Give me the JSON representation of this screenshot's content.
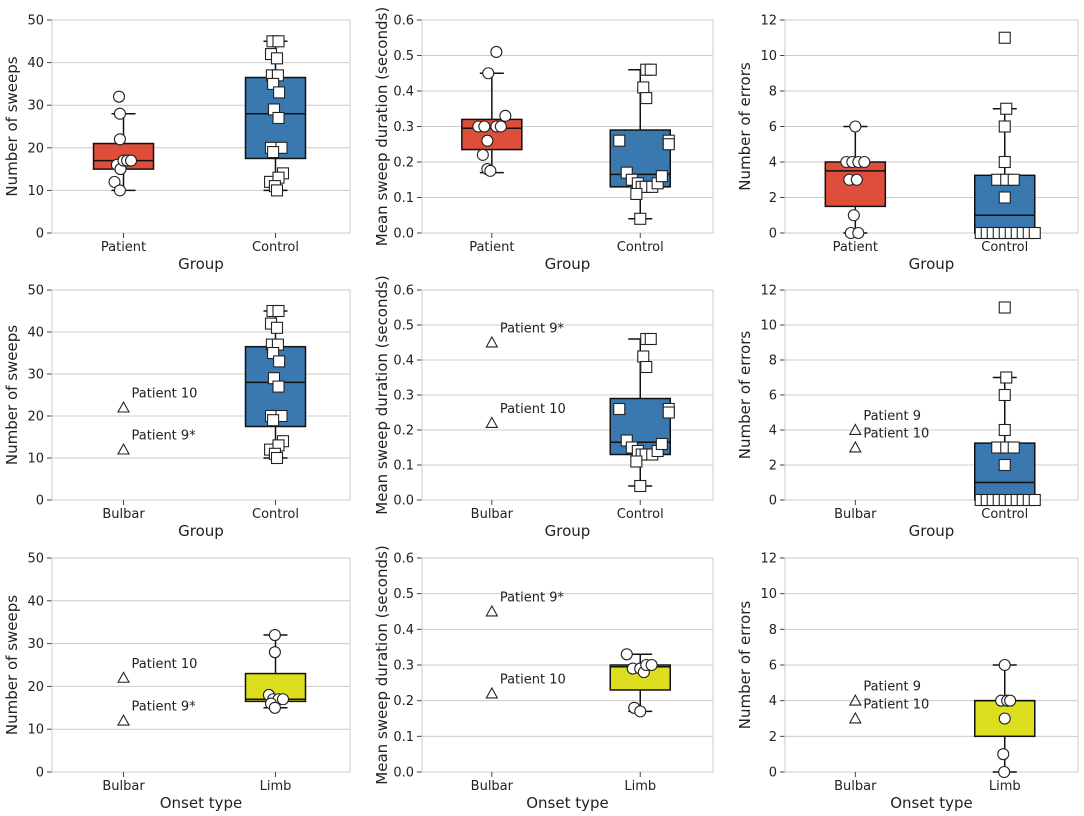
{
  "colors": {
    "patient": "#dd4f3a",
    "control": "#3a79b0",
    "limb": "#dede20",
    "grid": "#cccccc",
    "frame": "#cccccc",
    "marker_edge": "#222222",
    "marker_fill": "#ffffff"
  },
  "chart_data": [
    {
      "type": "box",
      "ylabel": "Number of sweeps",
      "xlabel": "Group",
      "ylim": [
        0,
        50
      ],
      "yticks": [
        "0",
        "10",
        "20",
        "30",
        "40",
        "50"
      ],
      "categories": [
        "Patient",
        "Control"
      ],
      "boxes": [
        {
          "category": "Patient",
          "color_key": "patient",
          "whisker_low": 10,
          "q1": 15,
          "median": 17,
          "q3": 21,
          "whisker_high": 28,
          "marker": "circle",
          "points": [
            [
              -0.15,
              32
            ],
            [
              -0.12,
              28
            ],
            [
              -0.12,
              22
            ],
            [
              -0.3,
              12
            ],
            [
              -0.12,
              10
            ],
            [
              -0.22,
              16
            ],
            [
              -0.1,
              15
            ],
            [
              0.0,
              17
            ],
            [
              0.12,
              17
            ],
            [
              0.25,
              17
            ]
          ]
        },
        {
          "category": "Control",
          "color_key": "control",
          "whisker_low": 10,
          "q1": 17.5,
          "median": 28,
          "q3": 36.5,
          "whisker_high": 45,
          "marker": "square",
          "points": [
            [
              -0.1,
              45
            ],
            [
              0.1,
              45
            ],
            [
              -0.15,
              42
            ],
            [
              0.05,
              41
            ],
            [
              -0.12,
              37
            ],
            [
              0.08,
              37
            ],
            [
              -0.08,
              35
            ],
            [
              0.12,
              33
            ],
            [
              -0.05,
              29
            ],
            [
              0.1,
              27
            ],
            [
              -0.15,
              20
            ],
            [
              0.2,
              20
            ],
            [
              -0.08,
              19
            ],
            [
              -0.18,
              12
            ],
            [
              0.25,
              14
            ],
            [
              0.1,
              13
            ],
            [
              -0.02,
              11
            ],
            [
              0.05,
              10
            ]
          ]
        }
      ],
      "annotations": []
    },
    {
      "type": "box",
      "ylabel": "Mean sweep duration (seconds)",
      "xlabel": "Group",
      "ylim": [
        0,
        0.6
      ],
      "yticks": [
        "0.0",
        "0.1",
        "0.2",
        "0.3",
        "0.4",
        "0.5",
        "0.6"
      ],
      "categories": [
        "Patient",
        "Control"
      ],
      "boxes": [
        {
          "category": "Patient",
          "color_key": "patient",
          "whisker_low": 0.17,
          "q1": 0.235,
          "median": 0.295,
          "q3": 0.32,
          "whisker_high": 0.45,
          "marker": "circle",
          "points": [
            [
              0.15,
              0.51
            ],
            [
              -0.12,
              0.45
            ],
            [
              -0.45,
              0.3
            ],
            [
              -0.25,
              0.3
            ],
            [
              -0.15,
              0.26
            ],
            [
              -0.3,
              0.22
            ],
            [
              -0.15,
              0.18
            ],
            [
              -0.05,
              0.175
            ],
            [
              0.15,
              0.3
            ],
            [
              0.3,
              0.3
            ],
            [
              0.45,
              0.33
            ]
          ]
        },
        {
          "category": "Control",
          "color_key": "control",
          "whisker_low": 0.04,
          "q1": 0.13,
          "median": 0.165,
          "q3": 0.29,
          "whisker_high": 0.46,
          "marker": "square",
          "points": [
            [
              0.2,
              0.46
            ],
            [
              0.35,
              0.46
            ],
            [
              0.1,
              0.41
            ],
            [
              0.2,
              0.38
            ],
            [
              -0.7,
              0.26
            ],
            [
              -0.45,
              0.17
            ],
            [
              -0.28,
              0.15
            ],
            [
              -0.08,
              0.14
            ],
            [
              0.05,
              0.13
            ],
            [
              0.18,
              0.13
            ],
            [
              0.4,
              0.13
            ],
            [
              0.58,
              0.14
            ],
            [
              0.72,
              0.16
            ],
            [
              0.95,
              0.26
            ],
            [
              0.95,
              0.25
            ],
            [
              -0.13,
              0.11
            ],
            [
              0.0,
              0.04
            ]
          ]
        }
      ],
      "annotations": []
    },
    {
      "type": "box",
      "ylabel": "Number of errors",
      "xlabel": "Group",
      "ylim": [
        0,
        12
      ],
      "yticks": [
        "0",
        "2",
        "4",
        "6",
        "8",
        "10",
        "12"
      ],
      "categories": [
        "Patient",
        "Control"
      ],
      "boxes": [
        {
          "category": "Patient",
          "color_key": "patient",
          "whisker_low": 0,
          "q1": 1.5,
          "median": 3.5,
          "q3": 4,
          "whisker_high": 6,
          "marker": "circle",
          "points": [
            [
              0.0,
              6
            ],
            [
              -0.3,
              4
            ],
            [
              -0.1,
              4
            ],
            [
              0.1,
              4
            ],
            [
              0.3,
              4
            ],
            [
              -0.2,
              3
            ],
            [
              0.05,
              3
            ],
            [
              -0.05,
              1
            ],
            [
              -0.15,
              0
            ],
            [
              0.1,
              0
            ]
          ]
        },
        {
          "category": "Control",
          "color_key": "control",
          "whisker_low": 0,
          "q1": 0,
          "median": 1,
          "q3": 3.25,
          "whisker_high": 7,
          "marker": "square",
          "points": [
            [
              0.0,
              11
            ],
            [
              0.05,
              7
            ],
            [
              0.0,
              6
            ],
            [
              0.0,
              4
            ],
            [
              -0.25,
              3
            ],
            [
              0.05,
              3
            ],
            [
              0.3,
              3
            ],
            [
              0.0,
              2
            ],
            [
              -0.8,
              0
            ],
            [
              -0.6,
              0
            ],
            [
              -0.4,
              0
            ],
            [
              -0.2,
              0
            ],
            [
              0.0,
              0
            ],
            [
              0.2,
              0
            ],
            [
              0.4,
              0
            ],
            [
              0.6,
              0
            ],
            [
              0.8,
              0
            ],
            [
              1.0,
              0
            ]
          ]
        }
      ],
      "annotations": []
    },
    {
      "type": "box",
      "ylabel": "Number of sweeps",
      "xlabel": "Group",
      "ylim": [
        0,
        50
      ],
      "yticks": [
        "0",
        "10",
        "20",
        "30",
        "40",
        "50"
      ],
      "categories": [
        "Bulbar",
        "Control"
      ],
      "boxes": [
        {
          "category": "Control",
          "color_key": "control",
          "whisker_low": 10,
          "q1": 17.5,
          "median": 28,
          "q3": 36.5,
          "whisker_high": 45,
          "marker": "square",
          "points": [
            [
              -0.1,
              45
            ],
            [
              0.1,
              45
            ],
            [
              -0.15,
              42
            ],
            [
              0.05,
              41
            ],
            [
              -0.12,
              37
            ],
            [
              0.08,
              37
            ],
            [
              -0.08,
              35
            ],
            [
              0.12,
              33
            ],
            [
              -0.05,
              29
            ],
            [
              0.1,
              27
            ],
            [
              -0.15,
              20
            ],
            [
              0.2,
              20
            ],
            [
              -0.08,
              19
            ],
            [
              -0.18,
              12
            ],
            [
              0.25,
              14
            ],
            [
              0.1,
              13
            ],
            [
              -0.02,
              11
            ],
            [
              0.05,
              10
            ]
          ]
        }
      ],
      "triangles": [
        {
          "category": "Bulbar",
          "y": 22
        },
        {
          "category": "Bulbar",
          "y": 12
        }
      ],
      "annotations": [
        {
          "text": "Patient 10",
          "category": "Bulbar",
          "y": 22
        },
        {
          "text": "Patient 9*",
          "category": "Bulbar",
          "y": 12
        }
      ]
    },
    {
      "type": "box",
      "ylabel": "Mean sweep duration (seconds)",
      "xlabel": "Group",
      "ylim": [
        0,
        0.6
      ],
      "yticks": [
        "0.0",
        "0.1",
        "0.2",
        "0.3",
        "0.4",
        "0.5",
        "0.6"
      ],
      "categories": [
        "Bulbar",
        "Control"
      ],
      "boxes": [
        {
          "category": "Control",
          "color_key": "control",
          "whisker_low": 0.04,
          "q1": 0.13,
          "median": 0.165,
          "q3": 0.29,
          "whisker_high": 0.46,
          "marker": "square",
          "points": [
            [
              0.2,
              0.46
            ],
            [
              0.35,
              0.46
            ],
            [
              0.1,
              0.41
            ],
            [
              0.2,
              0.38
            ],
            [
              -0.7,
              0.26
            ],
            [
              -0.45,
              0.17
            ],
            [
              -0.28,
              0.15
            ],
            [
              -0.08,
              0.14
            ],
            [
              0.05,
              0.13
            ],
            [
              0.18,
              0.13
            ],
            [
              0.4,
              0.13
            ],
            [
              0.58,
              0.14
            ],
            [
              0.72,
              0.16
            ],
            [
              0.95,
              0.26
            ],
            [
              0.95,
              0.25
            ],
            [
              -0.13,
              0.11
            ],
            [
              0.0,
              0.04
            ]
          ]
        }
      ],
      "triangles": [
        {
          "category": "Bulbar",
          "y": 0.45
        },
        {
          "category": "Bulbar",
          "y": 0.22
        }
      ],
      "annotations": [
        {
          "text": "Patient 9*",
          "category": "Bulbar",
          "y": 0.45
        },
        {
          "text": "Patient 10",
          "category": "Bulbar",
          "y": 0.22
        }
      ]
    },
    {
      "type": "box",
      "ylabel": "Number of errors",
      "xlabel": "Group",
      "ylim": [
        0,
        12
      ],
      "yticks": [
        "0",
        "2",
        "4",
        "6",
        "8",
        "10",
        "12"
      ],
      "categories": [
        "Bulbar",
        "Control"
      ],
      "boxes": [
        {
          "category": "Control",
          "color_key": "control",
          "whisker_low": 0,
          "q1": 0,
          "median": 1,
          "q3": 3.25,
          "whisker_high": 7,
          "marker": "square",
          "points": [
            [
              0.0,
              11
            ],
            [
              0.05,
              7
            ],
            [
              0.0,
              6
            ],
            [
              0.0,
              4
            ],
            [
              -0.25,
              3
            ],
            [
              0.05,
              3
            ],
            [
              0.3,
              3
            ],
            [
              0.0,
              2
            ],
            [
              -0.8,
              0
            ],
            [
              -0.6,
              0
            ],
            [
              -0.4,
              0
            ],
            [
              -0.2,
              0
            ],
            [
              0.0,
              0
            ],
            [
              0.2,
              0
            ],
            [
              0.4,
              0
            ],
            [
              0.6,
              0
            ],
            [
              0.8,
              0
            ],
            [
              1.0,
              0
            ]
          ]
        }
      ],
      "triangles": [
        {
          "category": "Bulbar",
          "y": 4
        },
        {
          "category": "Bulbar",
          "y": 3
        }
      ],
      "annotations": [
        {
          "text": "Patient 9",
          "category": "Bulbar",
          "y": 4
        },
        {
          "text": "Patient 10",
          "category": "Bulbar",
          "y": 3
        }
      ]
    },
    {
      "type": "box",
      "ylabel": "Number of sweeps",
      "xlabel": "Onset type",
      "ylim": [
        0,
        50
      ],
      "yticks": [
        "0",
        "10",
        "20",
        "30",
        "40",
        "50"
      ],
      "categories": [
        "Bulbar",
        "Limb"
      ],
      "boxes": [
        {
          "category": "Limb",
          "color_key": "limb",
          "whisker_low": 15,
          "q1": 16.5,
          "median": 17,
          "q3": 23,
          "whisker_high": 32,
          "marker": "circle",
          "points": [
            [
              -0.02,
              32
            ],
            [
              -0.02,
              28
            ],
            [
              -0.22,
              18
            ],
            [
              -0.08,
              17
            ],
            [
              0.1,
              17
            ],
            [
              0.25,
              17
            ],
            [
              -0.15,
              16
            ],
            [
              -0.02,
              15
            ]
          ]
        }
      ],
      "triangles": [
        {
          "category": "Bulbar",
          "y": 22
        },
        {
          "category": "Bulbar",
          "y": 12
        }
      ],
      "annotations": [
        {
          "text": "Patient 10",
          "category": "Bulbar",
          "y": 22
        },
        {
          "text": "Patient 9*",
          "category": "Bulbar",
          "y": 12
        }
      ]
    },
    {
      "type": "box",
      "ylabel": "Mean sweep duration (seconds)",
      "xlabel": "Onset type",
      "ylim": [
        0,
        0.6
      ],
      "yticks": [
        "0.0",
        "0.1",
        "0.2",
        "0.3",
        "0.4",
        "0.5",
        "0.6"
      ],
      "categories": [
        "Bulbar",
        "Limb"
      ],
      "boxes": [
        {
          "category": "Limb",
          "color_key": "limb",
          "whisker_low": 0.17,
          "q1": 0.23,
          "median": 0.295,
          "q3": 0.3,
          "whisker_high": 0.33,
          "marker": "circle",
          "points": [
            [
              -0.45,
              0.33
            ],
            [
              -0.25,
              0.29
            ],
            [
              0.0,
              0.29
            ],
            [
              0.12,
              0.28
            ],
            [
              0.2,
              0.3
            ],
            [
              0.38,
              0.3
            ],
            [
              -0.2,
              0.18
            ],
            [
              0.0,
              0.17
            ]
          ]
        }
      ],
      "triangles": [
        {
          "category": "Bulbar",
          "y": 0.45
        },
        {
          "category": "Bulbar",
          "y": 0.22
        }
      ],
      "annotations": [
        {
          "text": "Patient 9*",
          "category": "Bulbar",
          "y": 0.45
        },
        {
          "text": "Patient 10",
          "category": "Bulbar",
          "y": 0.22
        }
      ]
    },
    {
      "type": "box",
      "ylabel": "Number of errors",
      "xlabel": "Onset type",
      "ylim": [
        0,
        12
      ],
      "yticks": [
        "0",
        "2",
        "4",
        "6",
        "8",
        "10",
        "12"
      ],
      "categories": [
        "Bulbar",
        "Limb"
      ],
      "boxes": [
        {
          "category": "Limb",
          "color_key": "limb",
          "whisker_low": 0,
          "q1": 2,
          "median": 4,
          "q3": 4,
          "whisker_high": 6,
          "marker": "circle",
          "points": [
            [
              0.0,
              6
            ],
            [
              -0.12,
              4
            ],
            [
              0.08,
              4
            ],
            [
              0.18,
              4
            ],
            [
              0.0,
              3
            ],
            [
              -0.05,
              1
            ],
            [
              -0.02,
              0
            ]
          ]
        }
      ],
      "triangles": [
        {
          "category": "Bulbar",
          "y": 4
        },
        {
          "category": "Bulbar",
          "y": 3
        }
      ],
      "annotations": [
        {
          "text": "Patient 9",
          "category": "Bulbar",
          "y": 4
        },
        {
          "text": "Patient 10",
          "category": "Bulbar",
          "y": 3
        }
      ]
    }
  ]
}
